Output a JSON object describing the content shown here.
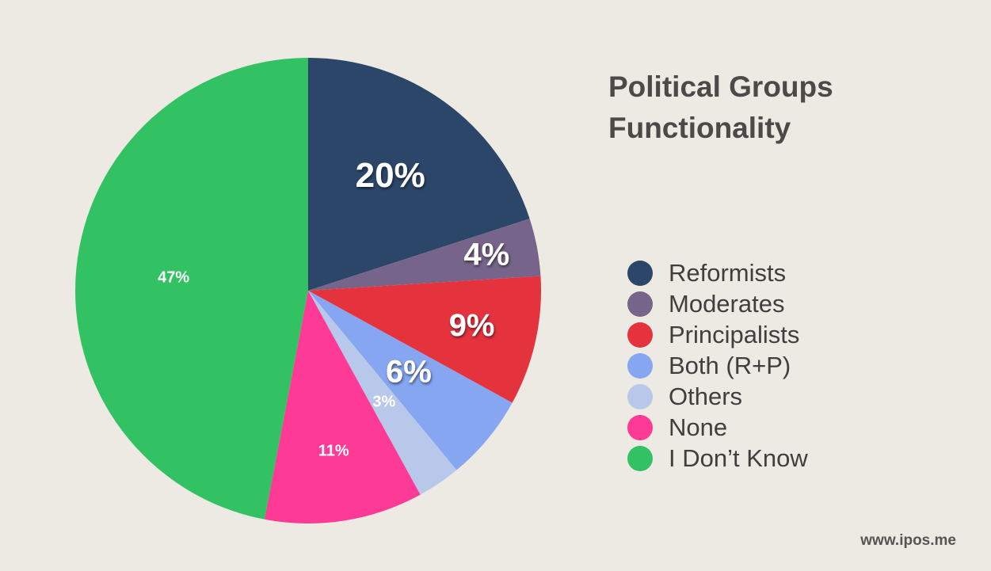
{
  "chart_data": {
    "type": "pie",
    "title_lines": [
      "Political Groups",
      "Functionality"
    ],
    "categories": [
      "Reformists",
      "Moderates",
      "Principalists",
      "Both (R+P)",
      "Others",
      "None",
      "I Don’t Know"
    ],
    "values": [
      20,
      4,
      9,
      6,
      3,
      11,
      47
    ],
    "value_labels": [
      "20%",
      "4%",
      "9%",
      "6%",
      "3%",
      "11%",
      "47%"
    ],
    "colors": [
      "#2b4669",
      "#77648a",
      "#e5333e",
      "#86a6f2",
      "#b8c8eb",
      "#fd3a95",
      "#33c263"
    ],
    "legend": "right",
    "start": "12 o'clock",
    "direction": "clockwise"
  },
  "footer": {
    "website": "www.ipos.me"
  }
}
